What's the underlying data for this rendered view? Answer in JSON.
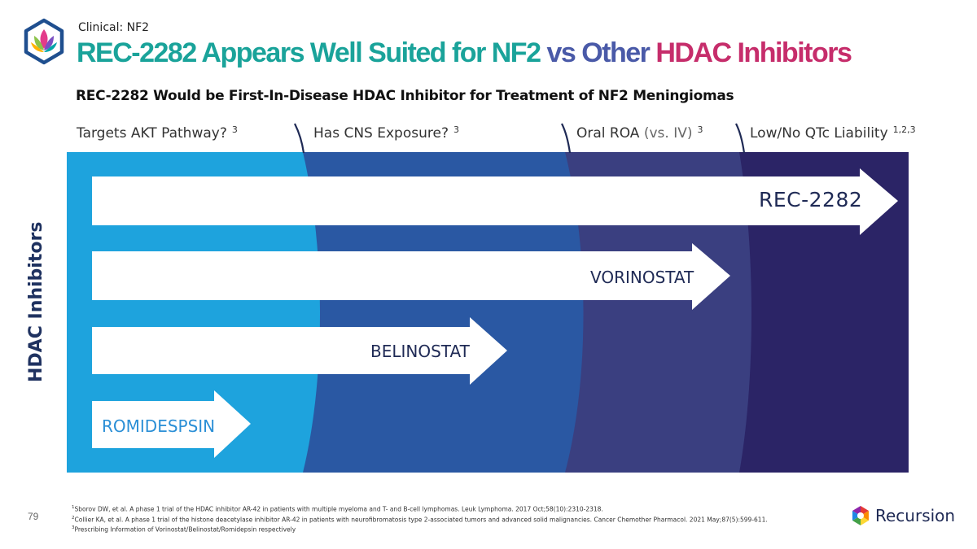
{
  "section_label": "Clinical: NF2",
  "title": {
    "parts": [
      {
        "text": "REC-2282 Appears Well Suited for NF2 ",
        "color": "#1aa39a"
      },
      {
        "text": "vs Other ",
        "color": "#4a5aa8"
      },
      {
        "text": "HDAC Inhibitors",
        "color": "#c62d6b"
      }
    ]
  },
  "subtitle": "REC-2282 Would be First-In-Disease HDAC Inhibitor for Treatment of NF2 Meningiomas",
  "criteria": [
    {
      "label": "Targets AKT Pathway?",
      "note": "",
      "sup": "3"
    },
    {
      "label": "Has CNS Exposure?",
      "note": "",
      "sup": "3"
    },
    {
      "label": "Oral ROA ",
      "note": "(vs. IV)",
      "sup": "3"
    },
    {
      "label": "Low/No QTc Liability",
      "note": "",
      "sup": "1,2,3"
    }
  ],
  "axis_label": "HDAC Inhibitors",
  "inhibitors": [
    {
      "name": "REC-2282",
      "criteria_met": 4
    },
    {
      "name": "VORINOSTAT",
      "criteria_met": 3
    },
    {
      "name": "BELINOSTAT",
      "criteria_met": 2
    },
    {
      "name": "ROMIDESPSIN",
      "criteria_met": 1
    }
  ],
  "colors": {
    "zone1": "#1ea3dd",
    "zone2": "#2a58a3",
    "zone3": "#3a3f80",
    "zone4": "#2b2466",
    "arrow": "#ffffff"
  },
  "footnotes": [
    {
      "num": "1",
      "text": "Sborov DW, et al. A phase 1 trial of the HDAC inhibitor AR-42 in patients with multiple myeloma and T- and B-cell lymphomas. Leuk Lymphoma. 2017 Oct;58(10):2310-2318."
    },
    {
      "num": "2",
      "text": "Collier KA, et al. A phase 1 trial of the histone deacetylase inhibitor AR-42 in patients with neurofibromatosis type 2-associated tumors and advanced solid malignancies. Cancer Chemother Pharmacol. 2021 May;87(5):599-611."
    },
    {
      "num": "3",
      "text": "Prescribing Information of Vorinostat/Belinostat/Romidepsin respectively"
    }
  ],
  "page_number": "79",
  "brand": {
    "name": "Recursion",
    "icon": "recursion-hex-icon"
  },
  "logo": {
    "icon": "lotus-hexagon-icon"
  }
}
